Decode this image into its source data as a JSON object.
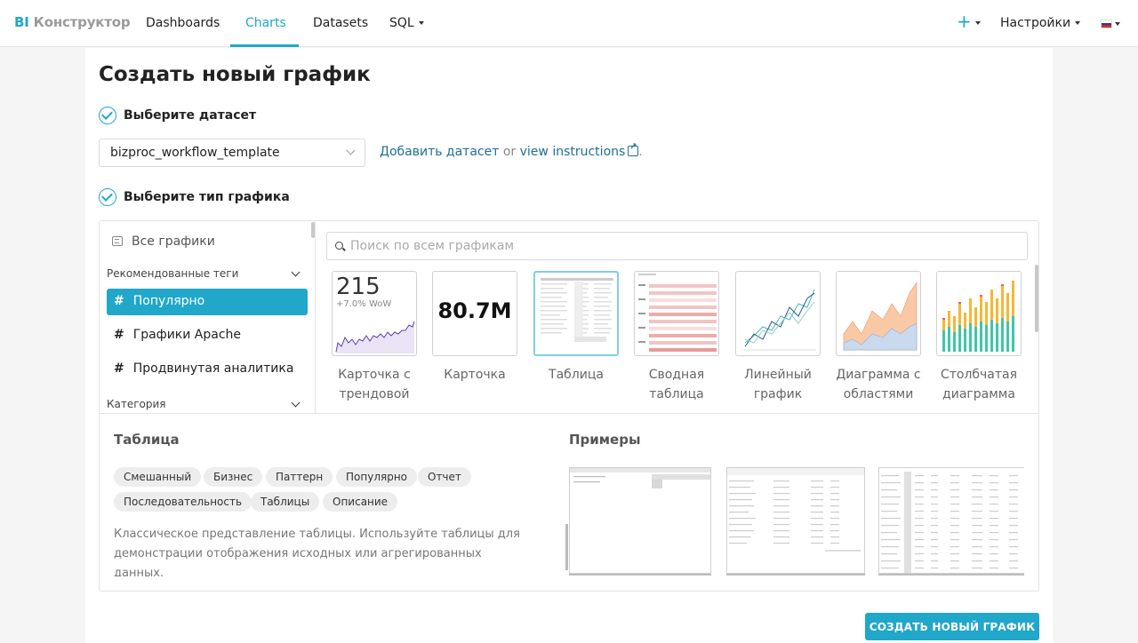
{
  "nav": {
    "brand_bi": "BI",
    "brand_name": "Конструктор",
    "links": [
      "Dashboards",
      "Charts",
      "Datasets",
      "SQL"
    ],
    "active": "Charts",
    "settings": "Настройки",
    "plus_icon": "plus-icon",
    "flag_colors": [
      "#ffffff",
      "#1c3fa8",
      "#d52b1e"
    ]
  },
  "page": {
    "title": "Создать новый график",
    "step1": "Выберите датасет",
    "step2": "Выберите тип графика"
  },
  "dataset": {
    "selected": "bizproc_workflow_template",
    "add_link": "Добавить датасет",
    "or": "or",
    "instructions_link": "view instructions",
    "period": "."
  },
  "sidebar": {
    "all_charts": "Все графики",
    "recommended_heading": "Рекомендованные теги",
    "tags": [
      "Популярно",
      "Графики Apache",
      "Продвинутая аналитика"
    ],
    "active_tag": "Популярно",
    "category_heading": "Категория"
  },
  "search": {
    "placeholder": "Поиск по всем графикам"
  },
  "gallery": {
    "tiles": [
      {
        "label": "Карточка с трендовой линией",
        "big_number": "215",
        "sub_text": "+7.0% WoW"
      },
      {
        "label": "Карточка",
        "big_number": "80.7M"
      },
      {
        "label": "Таблица",
        "selected": true
      },
      {
        "label": "Сводная таблица"
      },
      {
        "label": "Линейный график"
      },
      {
        "label": "Диаграмма с областями"
      },
      {
        "label": "Столбчатая диаграмма"
      }
    ]
  },
  "detail": {
    "title": "Таблица",
    "examples_title": "Примеры",
    "tags": [
      "Смешанный",
      "Бизнес",
      "Паттерн",
      "Популярно",
      "Отчет",
      "Последовательность",
      "Таблицы",
      "Описание"
    ],
    "description": "Классическое представление таблицы. Используйте таблицы для демонстрации отображения исходных или агрегированных данных."
  },
  "actions": {
    "create": "СОЗДАТЬ НОВЫЙ ГРАФИК"
  },
  "colors": {
    "accent": "#20a7c9",
    "link": "#1f6f96"
  }
}
